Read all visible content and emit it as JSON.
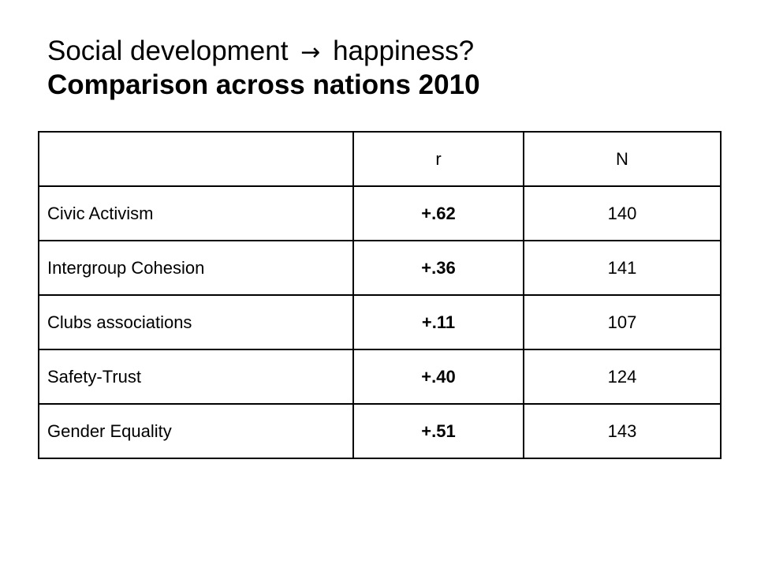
{
  "title": {
    "line1_before": "Social development",
    "line1_arrow": "→",
    "line1_after": "happiness?",
    "line2": "Comparison across nations 2010"
  },
  "table": {
    "header": {
      "empty": "",
      "col_r": "r",
      "col_n": "N"
    },
    "rows": [
      {
        "label": "Civic Activism",
        "r": "+.62",
        "n": "140"
      },
      {
        "label": "Intergroup Cohesion",
        "r": "+.36",
        "n": "141"
      },
      {
        "label": "Clubs associations",
        "r": "+.11",
        "n": "107"
      },
      {
        "label": "Safety-Trust",
        "r": "+.40",
        "n": "124"
      },
      {
        "label": "Gender Equality",
        "r": "+.51",
        "n": "143"
      }
    ]
  }
}
